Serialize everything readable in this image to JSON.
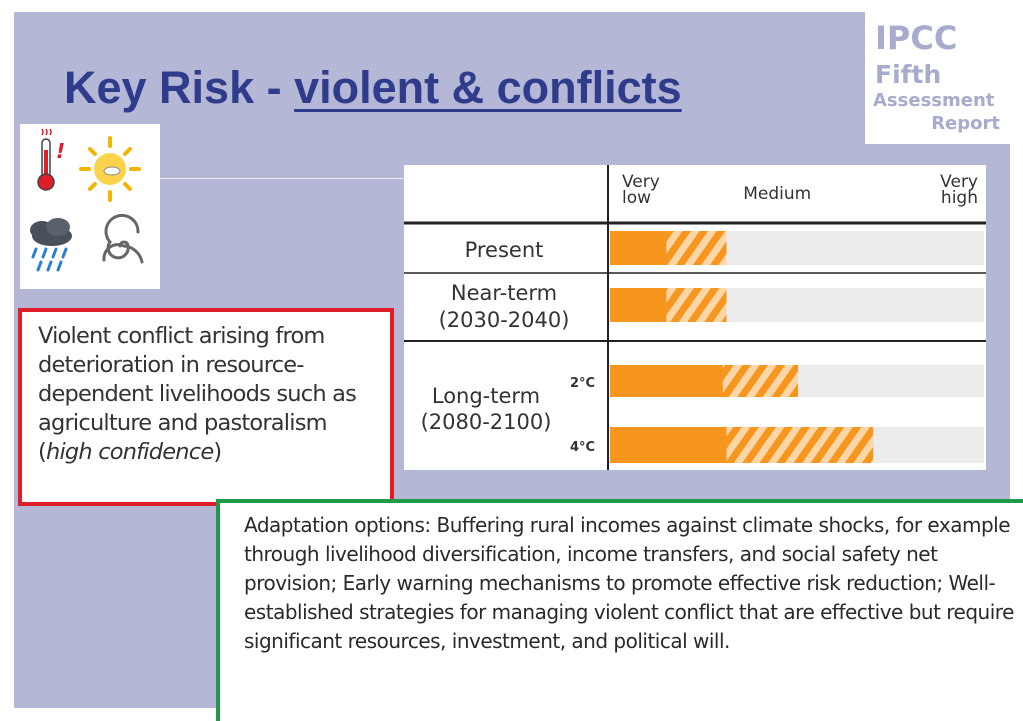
{
  "slide": {
    "title_prefix": "Key Risk - ",
    "title_link": "violent & conflicts"
  },
  "logo": {
    "line1": "IPCC",
    "line2": "Fifth",
    "line3": "Assessment",
    "line4": "Report"
  },
  "icons": [
    "thermometer-icon",
    "sun-icon",
    "rain-cloud-icon",
    "cyclone-icon"
  ],
  "risk_box": {
    "text": "Violent conflict arising from deterioration in resource-dependent livelihoods such as agriculture and pastoralism",
    "confidence": "high confidence"
  },
  "adaptation": {
    "text": "Adaptation options: Buffering rural incomes against climate shocks, for example through livelihood diversification, income transfers, and social safety net provision; Early warning mechanisms to promote effective risk reduction; Well-established strategies for managing violent conflict that are effective but require significant resources, investment, and political will."
  },
  "chart_data": {
    "type": "bar",
    "orientation": "horizontal",
    "scale_labels": [
      "Very low",
      "Medium",
      "Very high"
    ],
    "scale_range": [
      0,
      1
    ],
    "rows": [
      {
        "label": "Present",
        "sublabel": "",
        "solid": 0.15,
        "hatched": 0.31
      },
      {
        "label": "Near-term (2030-2040)",
        "sublabel": "",
        "solid": 0.15,
        "hatched": 0.31
      },
      {
        "label": "Long-term (2080-2100)",
        "sublabel": "2°C",
        "solid": 0.3,
        "hatched": 0.5
      },
      {
        "label": "Long-term (2080-2100)",
        "sublabel": "4°C",
        "solid": 0.31,
        "hatched": 0.7
      }
    ],
    "colors": {
      "solid": "#f7961e",
      "hatch": "#fcd6a6",
      "row_bg": "#ececec"
    }
  },
  "colors": {
    "title": "#2e3c8b",
    "risk_border": "#e01e2a",
    "adapt_border": "#1e9a48",
    "panel": "#b4b8d6"
  }
}
